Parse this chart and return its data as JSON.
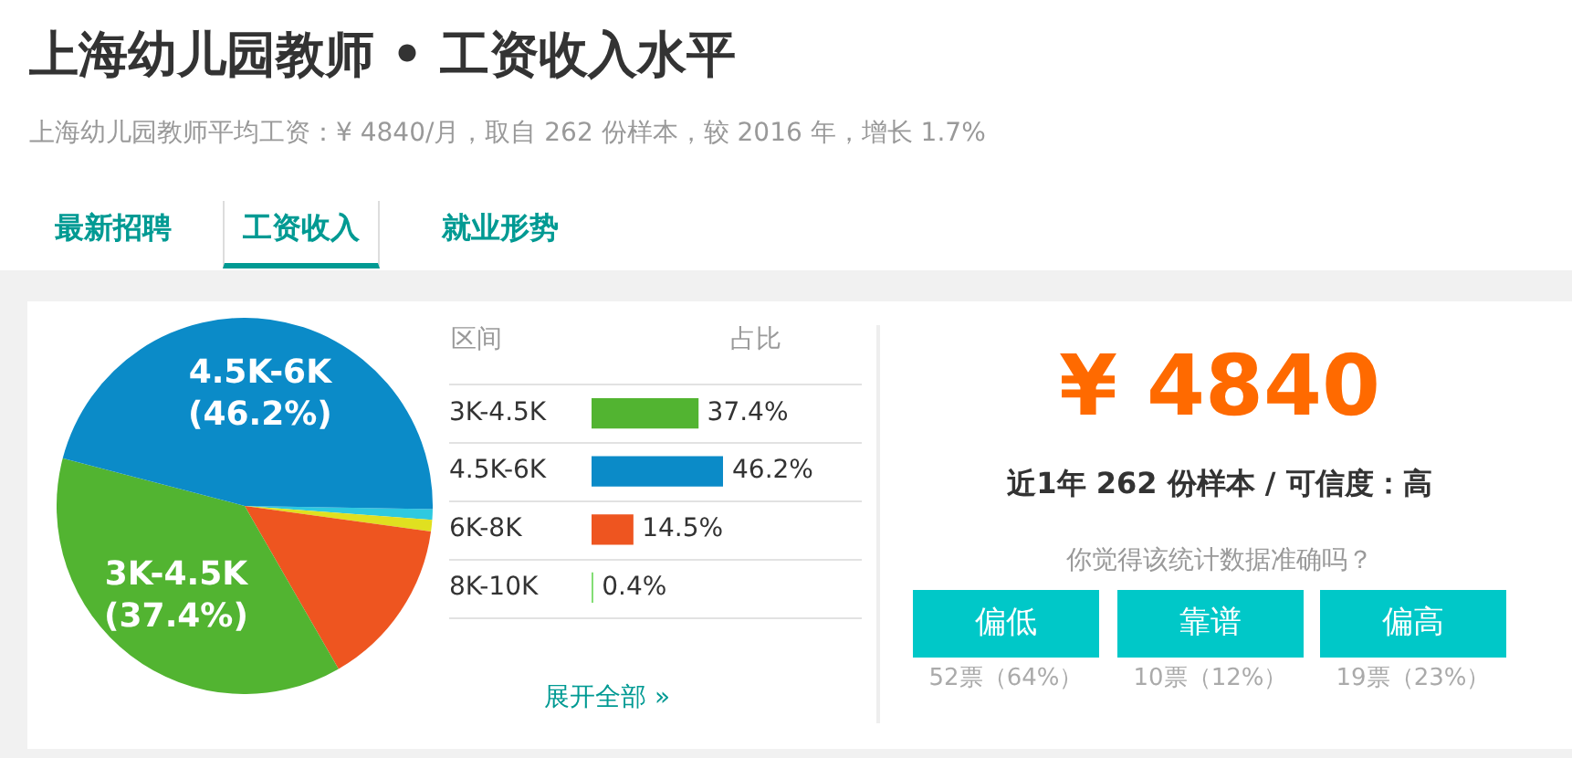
{
  "chart_data": [
    {
      "type": "pie",
      "title": "上海幼儿园教师 • 工资收入水平",
      "subtitle": "上海幼儿园教师平均工资：¥ 4840/月，取自 262 份样本，较 2016 年，增长 1.7%",
      "annotations": [
        "最新招聘",
        "工资收入",
        "就业形势"
      ],
      "categories": [
        null,
        null,
        null,
        "3K-4.5K",
        "4.5K-6K"
      ],
      "values": [
        0.9,
        1.0,
        14.5,
        37.4,
        46.2
      ],
      "colors": [
        "#2ec9e0",
        "#e0e020",
        "#ee5520",
        "#52b431",
        "#0b8bc8"
      ],
      "value_labels": [
        null,
        null,
        null,
        "(37.4%)",
        "(46.2%)"
      ],
      "legend": false
    },
    {
      "type": "bar",
      "orientation": "horizontal",
      "categories": [
        "3K-4.5K",
        "4.5K-6K",
        "6K-8K",
        "8K-10K"
      ],
      "values": [
        37.4,
        46.2,
        14.5,
        0.4
      ],
      "colors": [
        "#52b431",
        "#0b8bc8",
        "#ee5520",
        "#7ddc6e"
      ],
      "value_labels": [
        "37.4%",
        "46.2%",
        "14.5%",
        "0.4%"
      ],
      "annotations": [
        "区间",
        "占比",
        "展开全部 »"
      ],
      "grid": "y",
      "legend": false
    },
    {
      "type": "other",
      "title": "¥ 4840",
      "annotations": [
        "近1年 262 份样本 / 可信度：高",
        "你觉得该统计数据准确吗？",
        "偏低",
        "靠谱",
        "偏高",
        "52票（64%）",
        "10票（12%）",
        "19票（23%）"
      ]
    }
  ]
}
